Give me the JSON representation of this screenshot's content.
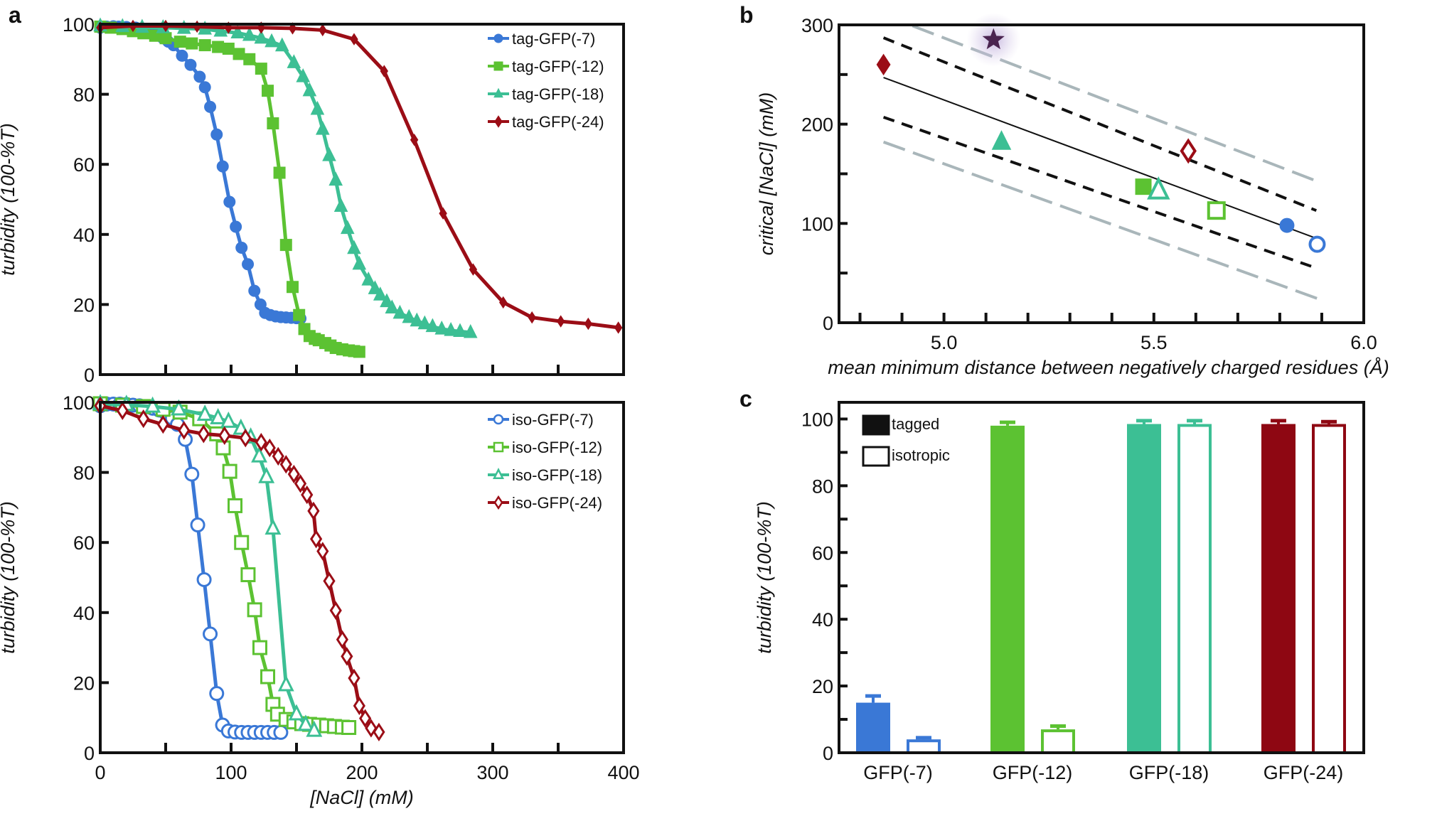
{
  "panel_labels": [
    "a",
    "b",
    "c"
  ],
  "chart_data": [
    {
      "type": "line",
      "ylabel": "turbidity (100-%T)",
      "xlabel": "",
      "xlim": [
        0,
        400
      ],
      "ylim": [
        0,
        100
      ],
      "xticks": [
        0,
        50,
        100,
        150,
        200,
        250,
        300,
        350,
        400
      ],
      "xtick_labels": [],
      "yticks": [
        0,
        20,
        40,
        60,
        80,
        100
      ],
      "ytick_labels": [
        "0",
        "20",
        "40",
        "60",
        "80",
        "100"
      ],
      "legend": "top-right",
      "grid": false,
      "series": [
        {
          "name": "tag-GFP(-7)",
          "color": "#3a78d6",
          "marker": "circle",
          "filled": true,
          "x": [
            0,
            5,
            10,
            14,
            20,
            27,
            33,
            39,
            44,
            48,
            52,
            56,
            62.5,
            69,
            76,
            80,
            84,
            89,
            93.6,
            98.8,
            103.6,
            108,
            112.8,
            117.8,
            122.5,
            126,
            130,
            134,
            138,
            142,
            146,
            150,
            153
          ],
          "y": [
            99,
            99.3,
            99.4,
            99.3,
            99.2,
            99,
            98.6,
            98,
            97.2,
            96,
            95,
            94,
            91,
            88.4,
            85,
            82,
            76.4,
            68.5,
            59.4,
            49.3,
            42.2,
            36.2,
            31.5,
            23.9,
            20,
            17.6,
            17,
            16.6,
            16.4,
            16.3,
            16.2,
            16.1,
            16
          ]
        },
        {
          "name": "tag-GFP(-12)",
          "color": "#5cc232",
          "marker": "square",
          "filled": true,
          "x": [
            0,
            8,
            17,
            25,
            33,
            42,
            50,
            61,
            70,
            80,
            90,
            98,
            106,
            114,
            123,
            128,
            132,
            137,
            142,
            147,
            152,
            156,
            160,
            164,
            167,
            172,
            176,
            180,
            185,
            190,
            194,
            198
          ],
          "y": [
            99.3,
            99,
            98.6,
            98,
            97.4,
            96.7,
            96,
            95,
            94.5,
            94,
            93.5,
            93,
            91.5,
            90,
            87.3,
            81,
            71.7,
            57.6,
            37,
            25,
            17,
            13,
            11,
            10.2,
            9.8,
            9,
            8.3,
            7.6,
            7.2,
            6.9,
            6.7,
            6.5
          ]
        },
        {
          "name": "tag-GFP(-18)",
          "color": "#3cbf94",
          "marker": "triangle",
          "filled": true,
          "x": [
            0,
            17,
            32,
            48,
            64,
            80,
            92,
            105,
            114,
            123,
            131,
            139,
            148,
            155,
            160,
            166,
            170,
            175,
            180,
            184,
            189,
            194,
            198,
            205,
            210,
            214,
            219,
            223,
            229,
            236,
            242,
            248,
            254,
            261,
            268,
            275,
            283
          ],
          "y": [
            99.5,
            99.3,
            99.1,
            99,
            98.8,
            98.6,
            98,
            97.5,
            96.8,
            96,
            95,
            93.8,
            89,
            85,
            81,
            75.7,
            70,
            62.5,
            55.5,
            48,
            41.7,
            36,
            31.5,
            27,
            24.5,
            22.7,
            20.8,
            19,
            17.5,
            16.3,
            15.3,
            14.5,
            13.7,
            13,
            12.6,
            12.3,
            12
          ]
        },
        {
          "name": "tag-GFP(-24)",
          "color": "#9b0d16",
          "marker": "diamond",
          "filled": true,
          "x": [
            0,
            25,
            50,
            74,
            98,
            123,
            147,
            170,
            194,
            217,
            240,
            262,
            285,
            308,
            330,
            352,
            373,
            396
          ],
          "y": [
            99,
            99.5,
            99.5,
            99.3,
            99,
            99,
            98.8,
            98.3,
            95.7,
            86.6,
            67,
            46,
            30,
            20.6,
            16.3,
            15.2,
            14.5,
            13.4
          ]
        }
      ]
    },
    {
      "type": "line",
      "ylabel": "turbidity (100-%T)",
      "xlabel": "[NaCl] (mM)",
      "xlim": [
        0,
        400
      ],
      "ylim": [
        0,
        100
      ],
      "xticks": [
        0,
        50,
        100,
        150,
        200,
        250,
        300,
        350,
        400
      ],
      "xtick_labels": [
        "0",
        "",
        "100",
        "",
        "200",
        "",
        "300",
        "",
        "400"
      ],
      "yticks": [
        0,
        20,
        40,
        60,
        80,
        100
      ],
      "ytick_labels": [
        "0",
        "20",
        "40",
        "60",
        "80",
        "100"
      ],
      "legend": "top-right",
      "grid": false,
      "series": [
        {
          "name": "iso-GFP(-7)",
          "color": "#3a78d6",
          "marker": "circle",
          "filled": false,
          "x": [
            0,
            5,
            10,
            15,
            20,
            25,
            30,
            35,
            40,
            45,
            50,
            55,
            59,
            65,
            70,
            74.5,
            79.4,
            84,
            89,
            93.5,
            98,
            103,
            108,
            113,
            118,
            123,
            128,
            133,
            138
          ],
          "y": [
            99,
            99.5,
            99.5,
            99.5,
            99.4,
            99.2,
            99,
            98.7,
            98.3,
            97.8,
            97,
            95.5,
            93.7,
            89.4,
            79.5,
            65,
            49.4,
            33.9,
            16.9,
            7.9,
            6.2,
            5.9,
            5.8,
            5.8,
            5.8,
            5.8,
            5.8,
            5.8,
            5.8
          ]
        },
        {
          "name": "iso-GFP(-12)",
          "color": "#5cc232",
          "marker": "square",
          "filled": false,
          "x": [
            0,
            17,
            33,
            48,
            61,
            76,
            89,
            94,
            99,
            103,
            108,
            113,
            118,
            122,
            128,
            132,
            135.5,
            142,
            148,
            154,
            160,
            167,
            173,
            179,
            185,
            190
          ],
          "y": [
            99.6,
            99.2,
            98.8,
            98,
            97.2,
            95.3,
            91,
            87,
            80.3,
            70.5,
            60,
            50.8,
            40.8,
            30,
            21.7,
            13.8,
            11,
            9.5,
            8.8,
            8.3,
            8.1,
            7.9,
            7.7,
            7.5,
            7.3,
            7.2
          ]
        },
        {
          "name": "iso-GFP(-18)",
          "color": "#3cbf94",
          "marker": "triangle",
          "filled": false,
          "x": [
            0,
            20,
            40,
            60,
            80,
            90,
            98,
            107.5,
            115,
            121.5,
            127,
            132,
            142,
            150,
            157,
            163.5
          ],
          "y": [
            99.5,
            99.3,
            98.8,
            98,
            96.5,
            95.5,
            94.5,
            92.5,
            90,
            84.6,
            78.7,
            64,
            19.3,
            11,
            8,
            6.3
          ]
        },
        {
          "name": "iso-GFP(-24)",
          "color": "#9b0d16",
          "marker": "diamond",
          "filled": false,
          "x": [
            0,
            17,
            33,
            48,
            64,
            79,
            95,
            111,
            123,
            129.5,
            136,
            142,
            148,
            153,
            158,
            163,
            165,
            170,
            175,
            180,
            185,
            188.5,
            194,
            198,
            202.5,
            207,
            213
          ],
          "y": [
            99,
            97.6,
            95.3,
            93.7,
            92,
            91,
            90.5,
            89.8,
            88.6,
            87,
            84.6,
            82.3,
            79.5,
            76.8,
            73.6,
            69,
            61,
            57.5,
            49,
            40.6,
            32.3,
            27.5,
            21.3,
            13.4,
            9.8,
            7,
            5.9
          ]
        }
      ]
    },
    {
      "type": "scatter",
      "ylabel": "critical [NaCl] (mM)",
      "xlabel": "mean minimum distance between negatively charged residues (Å)",
      "xlim": [
        4.75,
        6.0
      ],
      "ylim": [
        0,
        300
      ],
      "xticks": [
        4.8,
        4.9,
        5.0,
        5.1,
        5.2,
        5.3,
        5.4,
        5.5,
        5.6,
        5.7,
        5.8,
        5.9,
        6.0
      ],
      "xtick_labels": [
        "",
        "",
        "5.0",
        "",
        "",
        "",
        "",
        "5.5",
        "",
        "",
        "",
        "",
        "6.0"
      ],
      "yticks": [
        0,
        50,
        100,
        150,
        200,
        250,
        300
      ],
      "ytick_labels": [
        "0",
        "",
        "100",
        "",
        "200",
        "",
        "300"
      ],
      "grid": false,
      "points": [
        {
          "x": 4.856,
          "y": 260,
          "color": "#9b0d16",
          "marker": "diamond",
          "filled": true
        },
        {
          "x": 5.118,
          "y": 285,
          "color": "#4a2450",
          "marker": "star",
          "filled": true
        },
        {
          "x": 5.137,
          "y": 182,
          "color": "#3cbf94",
          "marker": "triangle",
          "filled": true
        },
        {
          "x": 5.475,
          "y": 137,
          "color": "#5cc232",
          "marker": "square",
          "filled": true
        },
        {
          "x": 5.511,
          "y": 133,
          "color": "#3cbf94",
          "marker": "triangle",
          "filled": false
        },
        {
          "x": 5.582,
          "y": 173,
          "color": "#9b0d16",
          "marker": "diamond",
          "filled": false
        },
        {
          "x": 5.649,
          "y": 113,
          "color": "#5cc232",
          "marker": "square",
          "filled": false
        },
        {
          "x": 5.817,
          "y": 98,
          "color": "#3a78d6",
          "marker": "circle",
          "filled": true
        },
        {
          "x": 5.889,
          "y": 79,
          "color": "#3a78d6",
          "marker": "circle",
          "filled": false
        }
      ],
      "lines": [
        {
          "style": "solid",
          "color": "#111111",
          "x": [
            4.856,
            5.887
          ],
          "y": [
            247,
            85
          ]
        },
        {
          "style": "dashed",
          "color": "#111111",
          "x": [
            4.856,
            5.887
          ],
          "y": [
            287,
            113
          ]
        },
        {
          "style": "dashed",
          "color": "#111111",
          "x": [
            4.856,
            5.887
          ],
          "y": [
            207,
            55
          ]
        },
        {
          "style": "long-dashed",
          "color": "#a9b6ba",
          "x": [
            4.925,
            5.892
          ],
          "y": [
            299,
            142
          ]
        },
        {
          "style": "long-dashed",
          "color": "#a9b6ba",
          "x": [
            4.856,
            5.892
          ],
          "y": [
            182,
            24
          ]
        }
      ]
    },
    {
      "type": "bar",
      "ylabel": "turbidity (100-%T)",
      "xlabel": "",
      "ylim": [
        0,
        105
      ],
      "yticks": [
        0,
        10,
        20,
        30,
        40,
        50,
        60,
        70,
        80,
        90,
        100
      ],
      "ytick_labels": [
        "0",
        "",
        "20",
        "",
        "40",
        "",
        "60",
        "",
        "80",
        "",
        "100"
      ],
      "categories": [
        "GFP(-7)",
        "GFP(-12)",
        "GFP(-18)",
        "GFP(-24)"
      ],
      "category_colors": [
        "#3a78d6",
        "#5cc232",
        "#3cbf94",
        "#8e0712"
      ],
      "legend": "top-left",
      "series": [
        {
          "name": "tagged",
          "filled": true,
          "values": [
            15,
            98,
            98.5,
            98.5
          ],
          "errors": [
            2,
            1,
            1,
            1
          ]
        },
        {
          "name": "isotropic",
          "filled": false,
          "values": [
            4,
            7,
            98.5,
            98.5
          ],
          "errors": [
            0.5,
            1,
            1,
            0.7
          ]
        }
      ]
    }
  ]
}
